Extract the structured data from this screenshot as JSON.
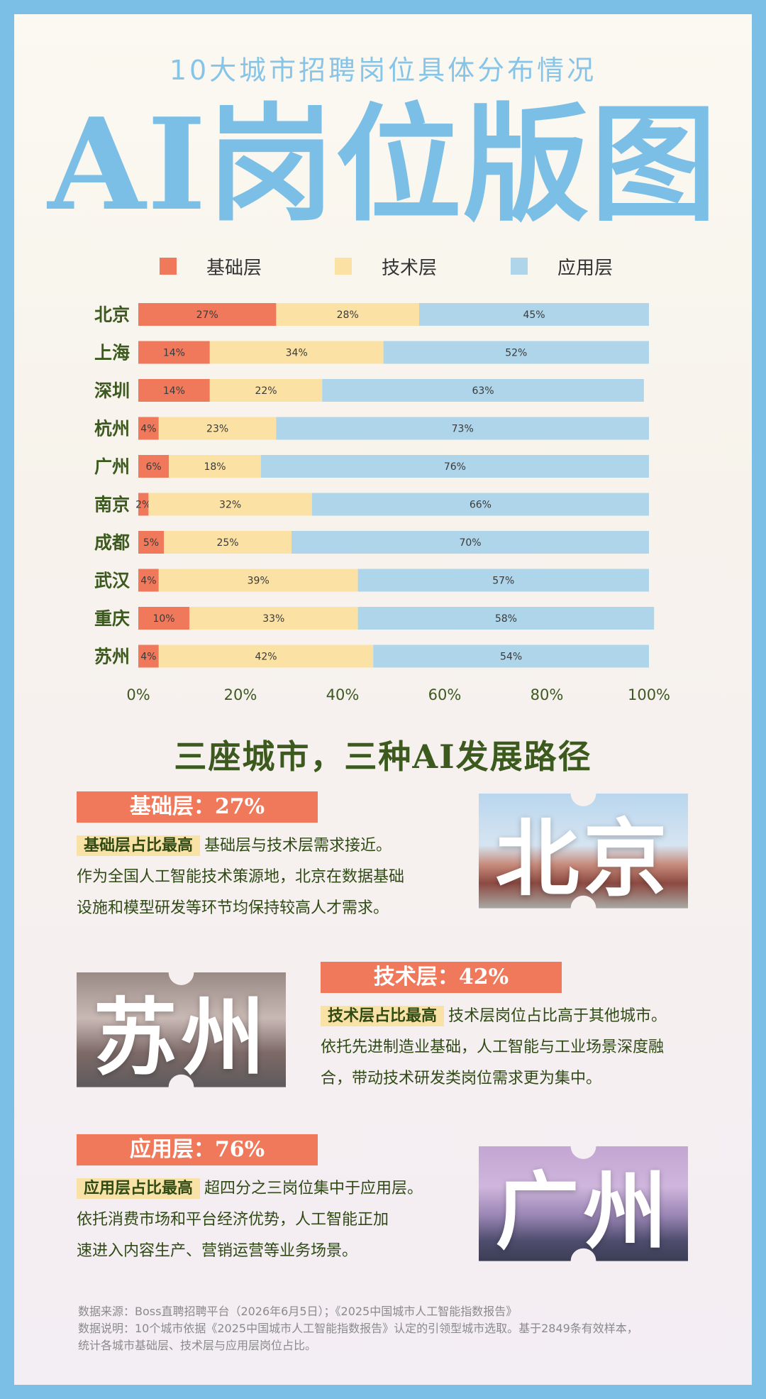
{
  "subtitle": "10大城市招聘岗位具体分布情况",
  "title": "AI岗位版图",
  "colors": {
    "foundation": "#f0795c",
    "tech": "#fbe2a4",
    "app": "#aed5ea",
    "accent_green": "#3d5a1e"
  },
  "chart_data": {
    "type": "bar",
    "orientation": "horizontal",
    "stacked": true,
    "categories": [
      "北京",
      "上海",
      "深圳",
      "杭州",
      "广州",
      "南京",
      "成都",
      "武汉",
      "重庆",
      "苏州"
    ],
    "series": [
      {
        "name": "基础层",
        "values": [
          27,
          14,
          14,
          4,
          6,
          2,
          5,
          4,
          10,
          4
        ]
      },
      {
        "name": "技术层",
        "values": [
          28,
          34,
          22,
          23,
          18,
          32,
          25,
          39,
          33,
          42
        ]
      },
      {
        "name": "应用层",
        "values": [
          45,
          52,
          63,
          73,
          76,
          66,
          70,
          57,
          58,
          54
        ]
      }
    ],
    "xlim": [
      0,
      100
    ],
    "xticks": [
      "0%",
      "20%",
      "40%",
      "60%",
      "80%",
      "100%"
    ],
    "legend_position": "top",
    "grid": false
  },
  "section_title": "三座城市，三种AI发展路径",
  "cards": [
    {
      "badge": "基础层：27%",
      "highlight": "基础层占比最高",
      "line1": "基础层与技术层需求接近。",
      "line2": "作为全国人工智能技术策源地，北京在数据基础",
      "line3": "设施和模型研发等环节均保持较高人才需求。",
      "photo_label": "北京",
      "photo_icon": "tiananmen-photo"
    },
    {
      "badge": "技术层：42%",
      "highlight": "技术层占比最高",
      "line1": "技术层岗位占比高于其他城市。",
      "line2": "依托先进制造业基础，人工智能与工业场景深度融",
      "line3": "合，带动技术研发类岗位需求更为集中。",
      "photo_label": "苏州",
      "photo_icon": "suzhou-canal-photo"
    },
    {
      "badge": "应用层：76%",
      "highlight": "应用层占比最高",
      "line1": "超四分之三岗位集中于应用层。",
      "line2": "依托消费市场和平台经济优势，人工智能正加",
      "line3": "速进入内容生产、营销运营等业务场景。",
      "photo_label": "广州",
      "photo_icon": "canton-tower-photo"
    }
  ],
  "footer": {
    "line1": "数据来源：Boss直聘招聘平台（2026年6月5日）；《2025中国城市人工智能指数报告》",
    "line2": "数据说明：10个城市依据《2025中国城市人工智能指数报告》认定的引领型城市选取。基于2849条有效样本，",
    "line3": "统计各城市基础层、技术层与应用层岗位占比。"
  }
}
